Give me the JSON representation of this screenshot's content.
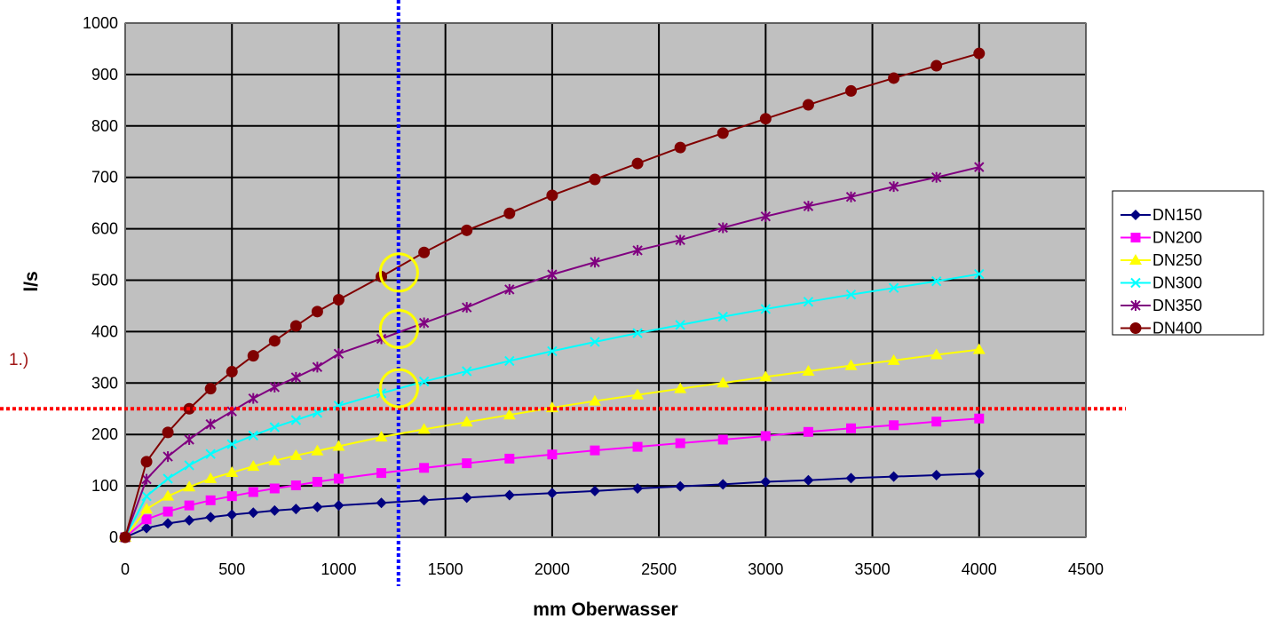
{
  "chart_data": {
    "type": "line",
    "title": "",
    "xlabel": "mm Oberwasser",
    "ylabel": "l/s",
    "xlim": [
      0,
      4500
    ],
    "ylim": [
      0,
      1000
    ],
    "xticks": [
      0,
      500,
      1000,
      1500,
      2000,
      2500,
      3000,
      3500,
      4000,
      4500
    ],
    "yticks": [
      0,
      100,
      200,
      300,
      400,
      500,
      600,
      700,
      800,
      900,
      1000
    ],
    "grid": true,
    "legend": "right",
    "plot_background": "#c0c0c0",
    "x": [
      0,
      100,
      200,
      300,
      400,
      500,
      600,
      700,
      800,
      900,
      1000,
      1200,
      1400,
      1600,
      1800,
      2000,
      2200,
      2400,
      2600,
      2800,
      3000,
      3200,
      3400,
      3600,
      3800,
      4000
    ],
    "series": [
      {
        "name": "DN150",
        "color": "#000080",
        "marker": "diamond",
        "values": [
          0,
          18,
          27,
          33,
          39,
          44,
          48,
          52,
          55,
          59,
          62,
          67,
          72,
          77,
          82,
          86,
          90,
          95,
          99,
          103,
          108,
          111,
          115,
          118,
          121,
          124
        ]
      },
      {
        "name": "DN200",
        "color": "#ff00ff",
        "marker": "square",
        "values": [
          0,
          35,
          50,
          62,
          72,
          80,
          88,
          95,
          101,
          108,
          114,
          125,
          135,
          144,
          153,
          161,
          169,
          176,
          183,
          190,
          197,
          205,
          212,
          218,
          225,
          231
        ]
      },
      {
        "name": "DN250",
        "color": "#ffff00",
        "marker": "triangle",
        "values": [
          0,
          55,
          80,
          98,
          114,
          126,
          138,
          149,
          159,
          168,
          177,
          195,
          210,
          224,
          238,
          252,
          265,
          277,
          289,
          300,
          312,
          323,
          334,
          344,
          355,
          365
        ]
      },
      {
        "name": "DN300",
        "color": "#00ffff",
        "marker": "x",
        "values": [
          0,
          80,
          114,
          140,
          162,
          181,
          198,
          214,
          228,
          242,
          256,
          280,
          303,
          323,
          343,
          362,
          380,
          397,
          413,
          429,
          444,
          458,
          472,
          485,
          498,
          512
        ]
      },
      {
        "name": "DN350",
        "color": "#800080",
        "marker": "star",
        "values": [
          0,
          113,
          157,
          190,
          220,
          245,
          270,
          292,
          311,
          331,
          357,
          386,
          417,
          447,
          482,
          511,
          535,
          558,
          578,
          602,
          624,
          644,
          662,
          682,
          700,
          720
        ]
      },
      {
        "name": "DN400",
        "color": "#800000",
        "marker": "circle",
        "values": [
          0,
          147,
          204,
          250,
          289,
          322,
          353,
          382,
          411,
          439,
          462,
          507,
          554,
          597,
          630,
          665,
          696,
          727,
          758,
          786,
          814,
          841,
          868,
          893,
          917,
          941
        ]
      }
    ],
    "annotations": {
      "note_label": "1.)",
      "horizontal_line": {
        "y": 250,
        "color": "#ff0000",
        "style": "dotted"
      },
      "vertical_line": {
        "x": 1280,
        "color": "#0000ff",
        "style": "dotted"
      },
      "highlight_circles": [
        {
          "x": 1270,
          "y": 515
        },
        {
          "x": 1270,
          "y": 405
        },
        {
          "x": 1270,
          "y": 290
        }
      ],
      "circle_color": "#ffff00"
    }
  }
}
